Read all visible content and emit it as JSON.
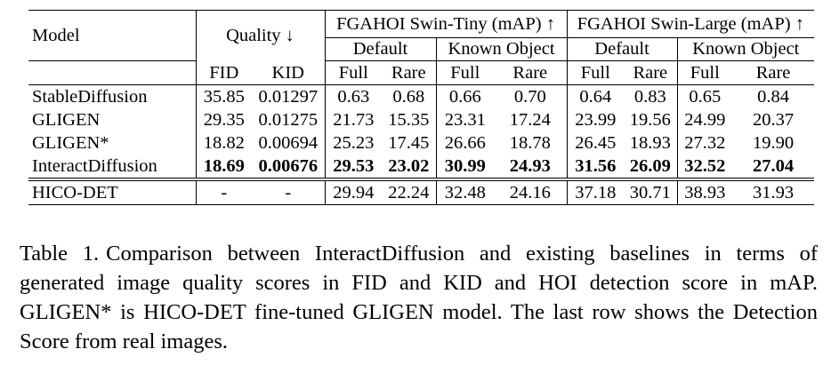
{
  "table": {
    "header": {
      "model": "Model",
      "quality": "Quality ↓",
      "group_tiny": "FGAHOI Swin-Tiny (mAP) ↑",
      "group_large": "FGAHOI Swin-Large (mAP) ↑",
      "default": "Default",
      "known_object": "Known Object",
      "fid": "FID",
      "kid": "KID",
      "full": "Full",
      "rare": "Rare"
    },
    "rows": [
      {
        "name": "StableDiffusion",
        "fid": "35.85",
        "kid": "0.01297",
        "tiny_default_full": "0.63",
        "tiny_default_rare": "0.68",
        "tiny_known_full": "0.66",
        "tiny_known_rare": "0.70",
        "large_default_full": "0.64",
        "large_default_rare": "0.83",
        "large_known_full": "0.65",
        "large_known_rare": "0.84"
      },
      {
        "name": "GLIGEN",
        "fid": "29.35",
        "kid": "0.01275",
        "tiny_default_full": "21.73",
        "tiny_default_rare": "15.35",
        "tiny_known_full": "23.31",
        "tiny_known_rare": "17.24",
        "large_default_full": "23.99",
        "large_default_rare": "19.56",
        "large_known_full": "24.99",
        "large_known_rare": "20.37"
      },
      {
        "name": "GLIGEN*",
        "fid": "18.82",
        "kid": "0.00694",
        "tiny_default_full": "25.23",
        "tiny_default_rare": "17.45",
        "tiny_known_full": "26.66",
        "tiny_known_rare": "18.78",
        "large_default_full": "26.45",
        "large_default_rare": "18.93",
        "large_known_full": "27.32",
        "large_known_rare": "19.90"
      },
      {
        "name": "InteractDiffusion",
        "fid": "18.69",
        "kid": "0.00676",
        "tiny_default_full": "29.53",
        "tiny_default_rare": "23.02",
        "tiny_known_full": "30.99",
        "tiny_known_rare": "24.93",
        "large_default_full": "31.56",
        "large_default_rare": "26.09",
        "large_known_full": "32.52",
        "large_known_rare": "27.04"
      },
      {
        "name": "HICO-DET",
        "fid": "-",
        "kid": "-",
        "tiny_default_full": "29.94",
        "tiny_default_rare": "22.24",
        "tiny_known_full": "32.48",
        "tiny_known_rare": "24.16",
        "large_default_full": "37.18",
        "large_default_rare": "30.71",
        "large_known_full": "38.93",
        "large_known_rare": "31.93"
      }
    ]
  },
  "caption": {
    "label": "Table 1.",
    "text": "Comparison between InteractDiffusion and existing baselines in terms of generated image quality scores in FID and KID and HOI detection score in mAP. GLIGEN* is HICO-DET fine-tuned GLIGEN model. The last row shows the Detection Score from real images."
  }
}
